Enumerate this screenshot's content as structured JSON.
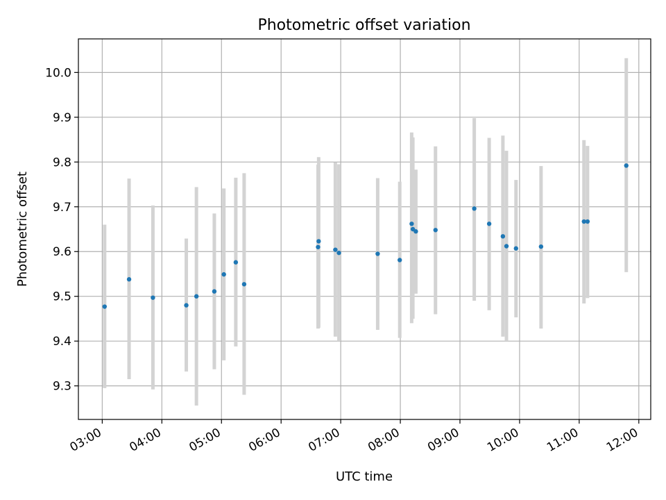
{
  "chart_data": {
    "type": "scatter",
    "title": "Photometric offset variation",
    "xlabel": "UTC time",
    "ylabel": "Photometric offset",
    "x_unit": "hours (UTC)",
    "xlim": [
      2.6,
      12.2
    ],
    "ylim": [
      9.225,
      10.075
    ],
    "grid": true,
    "marker_color": "#1f77b4",
    "errorbar_color": "#d3d3d3",
    "xticks": [
      {
        "value": 3,
        "label": "03:00"
      },
      {
        "value": 4,
        "label": "04:00"
      },
      {
        "value": 5,
        "label": "05:00"
      },
      {
        "value": 6,
        "label": "06:00"
      },
      {
        "value": 7,
        "label": "07:00"
      },
      {
        "value": 8,
        "label": "08:00"
      },
      {
        "value": 9,
        "label": "09:00"
      },
      {
        "value": 10,
        "label": "10:00"
      },
      {
        "value": 11,
        "label": "11:00"
      },
      {
        "value": 12,
        "label": "12:00"
      }
    ],
    "yticks": [
      {
        "value": 9.3,
        "label": "9.3"
      },
      {
        "value": 9.4,
        "label": "9.4"
      },
      {
        "value": 9.5,
        "label": "9.5"
      },
      {
        "value": 9.6,
        "label": "9.6"
      },
      {
        "value": 9.7,
        "label": "9.7"
      },
      {
        "value": 9.8,
        "label": "9.8"
      },
      {
        "value": 9.9,
        "label": "9.9"
      },
      {
        "value": 10.0,
        "label": "10.0"
      }
    ],
    "points": [
      {
        "x": 3.04,
        "y": 9.477,
        "ylow": 9.295,
        "yhigh": 9.66
      },
      {
        "x": 3.45,
        "y": 9.538,
        "ylow": 9.315,
        "yhigh": 9.763
      },
      {
        "x": 3.85,
        "y": 9.497,
        "ylow": 9.292,
        "yhigh": 9.703
      },
      {
        "x": 4.41,
        "y": 9.48,
        "ylow": 9.332,
        "yhigh": 9.629
      },
      {
        "x": 4.58,
        "y": 9.5,
        "ylow": 9.256,
        "yhigh": 9.744
      },
      {
        "x": 4.88,
        "y": 9.511,
        "ylow": 9.337,
        "yhigh": 9.685
      },
      {
        "x": 5.04,
        "y": 9.549,
        "ylow": 9.357,
        "yhigh": 9.741
      },
      {
        "x": 5.24,
        "y": 9.576,
        "ylow": 9.388,
        "yhigh": 9.765
      },
      {
        "x": 5.38,
        "y": 9.527,
        "ylow": 9.28,
        "yhigh": 9.775
      },
      {
        "x": 6.62,
        "y": 9.61,
        "ylow": 9.428,
        "yhigh": 9.794
      },
      {
        "x": 6.63,
        "y": 9.623,
        "ylow": 9.43,
        "yhigh": 9.811
      },
      {
        "x": 6.91,
        "y": 9.604,
        "ylow": 9.41,
        "yhigh": 9.799
      },
      {
        "x": 6.97,
        "y": 9.597,
        "ylow": 9.4,
        "yhigh": 9.795
      },
      {
        "x": 7.62,
        "y": 9.595,
        "ylow": 9.425,
        "yhigh": 9.764
      },
      {
        "x": 7.99,
        "y": 9.581,
        "ylow": 9.407,
        "yhigh": 9.756
      },
      {
        "x": 8.19,
        "y": 9.662,
        "ylow": 9.44,
        "yhigh": 9.866
      },
      {
        "x": 8.21,
        "y": 9.65,
        "ylow": 9.45,
        "yhigh": 9.855
      },
      {
        "x": 8.26,
        "y": 9.645,
        "ylow": 9.506,
        "yhigh": 9.783
      },
      {
        "x": 8.59,
        "y": 9.648,
        "ylow": 9.46,
        "yhigh": 9.835
      },
      {
        "x": 9.24,
        "y": 9.696,
        "ylow": 9.49,
        "yhigh": 9.898
      },
      {
        "x": 9.49,
        "y": 9.662,
        "ylow": 9.469,
        "yhigh": 9.854
      },
      {
        "x": 9.72,
        "y": 9.634,
        "ylow": 9.41,
        "yhigh": 9.859
      },
      {
        "x": 9.78,
        "y": 9.612,
        "ylow": 9.4,
        "yhigh": 9.825
      },
      {
        "x": 9.94,
        "y": 9.607,
        "ylow": 9.453,
        "yhigh": 9.76
      },
      {
        "x": 10.36,
        "y": 9.611,
        "ylow": 9.428,
        "yhigh": 9.791
      },
      {
        "x": 11.08,
        "y": 9.667,
        "ylow": 9.484,
        "yhigh": 9.849
      },
      {
        "x": 11.14,
        "y": 9.667,
        "ylow": 9.496,
        "yhigh": 9.836
      },
      {
        "x": 11.79,
        "y": 9.792,
        "ylow": 9.554,
        "yhigh": 10.032
      }
    ]
  }
}
